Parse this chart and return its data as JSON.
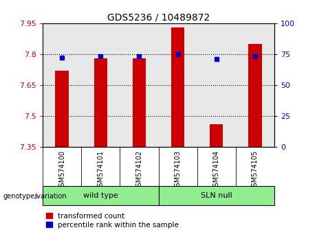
{
  "title": "GDS5236 / 10489872",
  "categories": [
    "GSM574100",
    "GSM574101",
    "GSM574102",
    "GSM574103",
    "GSM574104",
    "GSM574105"
  ],
  "red_values": [
    7.72,
    7.78,
    7.78,
    7.93,
    7.46,
    7.85
  ],
  "blue_values": [
    72,
    73,
    73,
    75,
    71,
    73
  ],
  "ylim_left": [
    7.35,
    7.95
  ],
  "ylim_right": [
    0,
    100
  ],
  "yticks_left": [
    7.35,
    7.5,
    7.65,
    7.8,
    7.95
  ],
  "yticks_right": [
    0,
    25,
    50,
    75,
    100
  ],
  "ytick_labels_left": [
    "7.35",
    "7.5",
    "7.65",
    "7.8",
    "7.95"
  ],
  "ytick_labels_right": [
    "0",
    "25",
    "50",
    "75",
    "100"
  ],
  "hlines": [
    7.5,
    7.65,
    7.8
  ],
  "group_label_prefix": "genotype/variation",
  "legend_red": "transformed count",
  "legend_blue": "percentile rank within the sample",
  "bar_color": "#cc0000",
  "dot_color": "#0000cc",
  "bar_width": 0.35,
  "plot_bg": "#e8e8e8",
  "axes_label_color_left": "#cc0000",
  "axes_label_color_right": "#0000cc",
  "group_box_bg": "#bbbbbb",
  "group_green": "#90EE90",
  "wild_type_label": "wild type",
  "sln_null_label": "SLN null"
}
